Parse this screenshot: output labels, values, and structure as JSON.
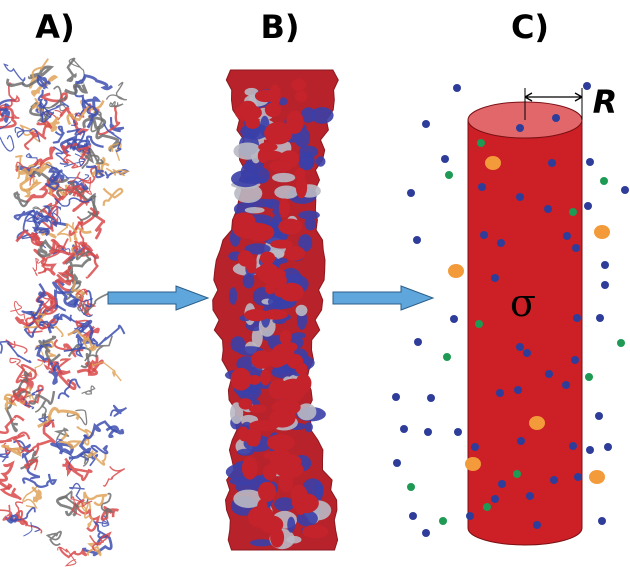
{
  "panels": [
    {
      "label": "A)"
    },
    {
      "label": "B)"
    },
    {
      "label": "C)"
    }
  ],
  "radius_label": "R",
  "charge_label": "σ"
}
